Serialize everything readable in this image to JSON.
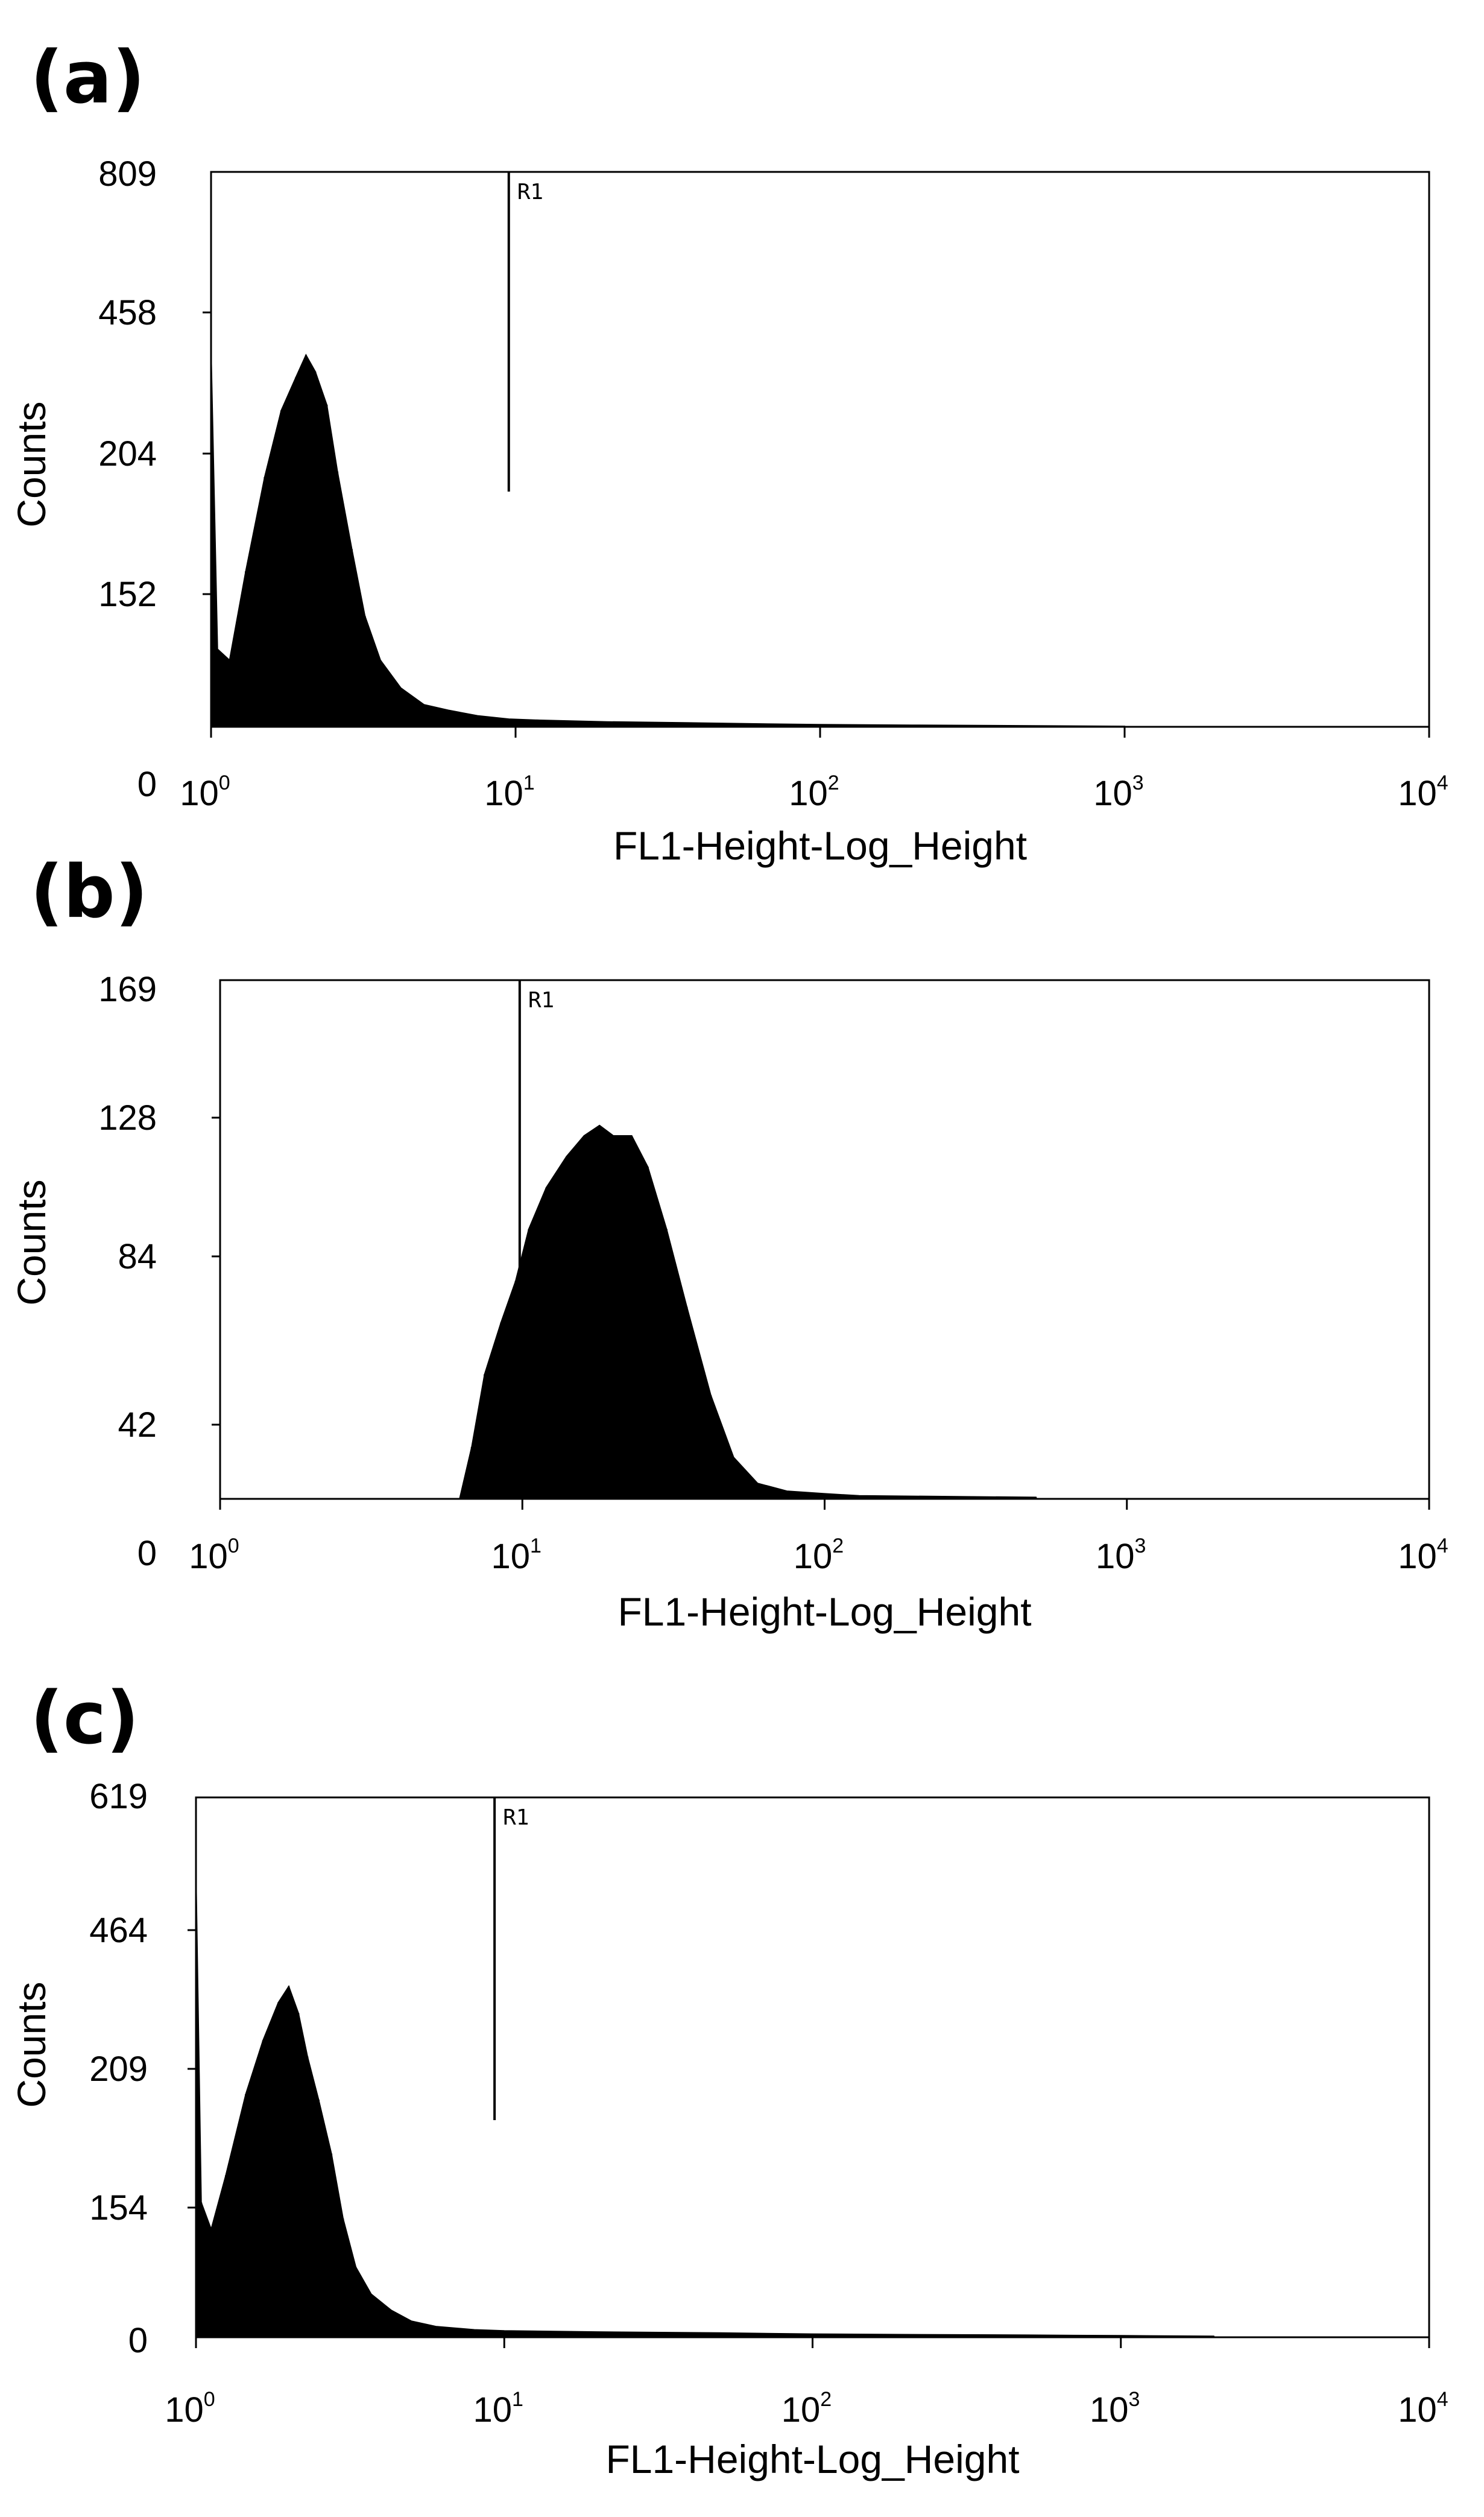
{
  "chart_data": [
    {
      "type": "area",
      "panel_label": "(a)",
      "xlabel": "FL1-Height-Log_Height",
      "ylabel": "Counts",
      "xscale": "log10",
      "xlim": [
        1,
        10000
      ],
      "x_ticks": [
        {
          "base": "10",
          "exp": "0"
        },
        {
          "base": "10",
          "exp": "1"
        },
        {
          "base": "10",
          "exp": "2"
        },
        {
          "base": "10",
          "exp": "3"
        },
        {
          "base": "10",
          "exp": "4"
        }
      ],
      "y_ticks": [
        "0",
        "152",
        "204",
        "458",
        "809"
      ],
      "gate": {
        "label": "R1",
        "x": 9.5
      },
      "grid": false,
      "series": [
        {
          "name": "histogram",
          "x": [
            1.0,
            1.05,
            1.15,
            1.3,
            1.5,
            1.7,
            1.9,
            2.05,
            2.2,
            2.4,
            2.6,
            2.9,
            3.2,
            3.6,
            4.2,
            5.0,
            6.0,
            7.5,
            9.5,
            12,
            20,
            40,
            70,
            100,
            200,
            500,
            1000
          ],
          "y": [
            0.68,
            0.14,
            0.12,
            0.28,
            0.45,
            0.57,
            0.63,
            0.67,
            0.64,
            0.58,
            0.46,
            0.32,
            0.2,
            0.12,
            0.07,
            0.04,
            0.03,
            0.02,
            0.014,
            0.012,
            0.009,
            0.007,
            0.005,
            0.004,
            0.003,
            0.002,
            0.001
          ]
        }
      ]
    },
    {
      "type": "area",
      "panel_label": "(b)",
      "xlabel": "FL1-Height-Log_Height",
      "ylabel": "Counts",
      "xscale": "log10",
      "xlim": [
        1,
        10000
      ],
      "x_ticks": [
        {
          "base": "10",
          "exp": "0"
        },
        {
          "base": "10",
          "exp": "1"
        },
        {
          "base": "10",
          "exp": "2"
        },
        {
          "base": "10",
          "exp": "3"
        },
        {
          "base": "10",
          "exp": "4"
        }
      ],
      "y_ticks": [
        "0",
        "42",
        "84",
        "128",
        "169"
      ],
      "gate": {
        "label": "R1",
        "x": 9.8
      },
      "grid": false,
      "series": [
        {
          "name": "histogram",
          "x": [
            6.2,
            6.8,
            7.5,
            8.5,
            9.5,
            10.5,
            12,
            14,
            16,
            18,
            20,
            23,
            26,
            30,
            35,
            42,
            50,
            60,
            75,
            100,
            130,
            500
          ],
          "y": [
            0.0,
            0.1,
            0.24,
            0.34,
            0.42,
            0.52,
            0.6,
            0.66,
            0.7,
            0.72,
            0.7,
            0.7,
            0.64,
            0.52,
            0.37,
            0.2,
            0.08,
            0.03,
            0.015,
            0.01,
            0.006,
            0.003
          ]
        }
      ]
    },
    {
      "type": "area",
      "panel_label": "(c)",
      "xlabel": "FL1-Height-Log_Height",
      "ylabel": "Counts",
      "xscale": "log10",
      "xlim": [
        1,
        10000
      ],
      "x_ticks": [
        {
          "base": "10",
          "exp": "0"
        },
        {
          "base": "10",
          "exp": "1"
        },
        {
          "base": "10",
          "exp": "2"
        },
        {
          "base": "10",
          "exp": "3"
        },
        {
          "base": "10",
          "exp": "4"
        }
      ],
      "y_ticks": [
        "0",
        "154",
        "209",
        "464",
        "619"
      ],
      "gate": {
        "label": "R1",
        "x": 9.3
      },
      "grid": false,
      "series": [
        {
          "name": "histogram",
          "x": [
            1.0,
            1.04,
            1.12,
            1.25,
            1.45,
            1.65,
            1.85,
            2.0,
            2.15,
            2.3,
            2.5,
            2.75,
            3.0,
            3.3,
            3.7,
            4.3,
            5.0,
            6.0,
            8.0,
            10,
            20,
            50,
            100,
            200,
            500,
            1000,
            2000
          ],
          "y": [
            0.86,
            0.25,
            0.2,
            0.3,
            0.45,
            0.55,
            0.62,
            0.65,
            0.6,
            0.52,
            0.44,
            0.34,
            0.22,
            0.13,
            0.08,
            0.05,
            0.03,
            0.02,
            0.014,
            0.012,
            0.01,
            0.008,
            0.006,
            0.005,
            0.004,
            0.003,
            0.002
          ]
        }
      ]
    }
  ]
}
